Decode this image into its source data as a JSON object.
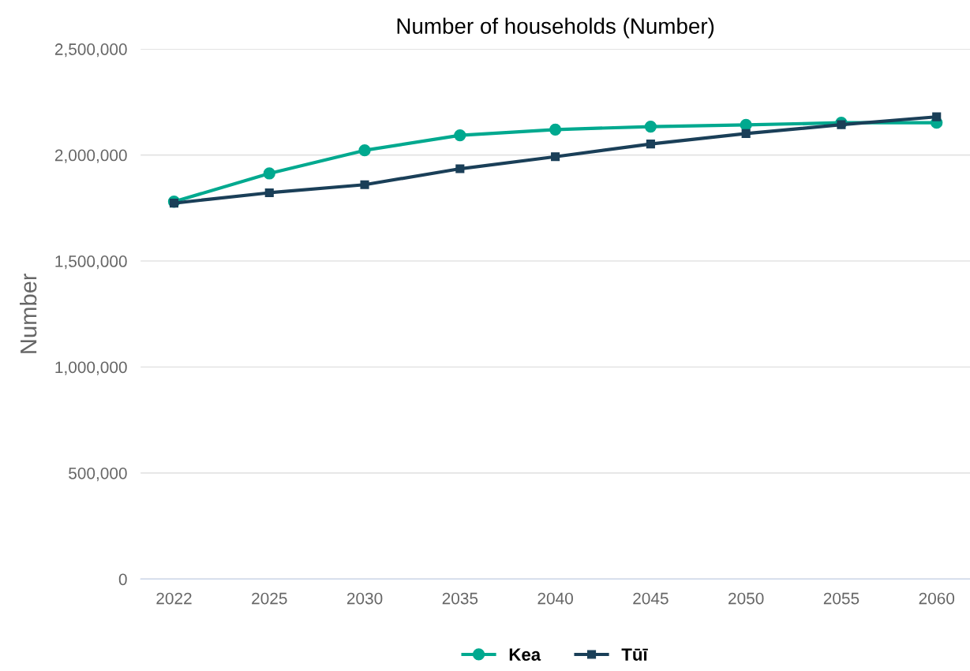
{
  "chart_data": {
    "type": "line",
    "title": "Number of households (Number)",
    "ylabel": "Number",
    "categories": [
      "2022",
      "2025",
      "2030",
      "2035",
      "2040",
      "2045",
      "2050",
      "2055",
      "2060"
    ],
    "series": [
      {
        "name": "Kea",
        "color": "#00a98f",
        "marker": "circle",
        "values": [
          1780000,
          1913000,
          2022000,
          2093000,
          2120000,
          2134000,
          2142000,
          2152000,
          2152000
        ]
      },
      {
        "name": "Tūī",
        "color": "#1a3f58",
        "marker": "square",
        "values": [
          1773000,
          1822000,
          1860000,
          1935000,
          1992000,
          2052000,
          2101000,
          2143000,
          2180000
        ]
      }
    ],
    "ylim": [
      0,
      2500000
    ],
    "yticks": [
      {
        "value": 0,
        "label": "0"
      },
      {
        "value": 500000,
        "label": "500,000"
      },
      {
        "value": 1000000,
        "label": "1,000,000"
      },
      {
        "value": 1500000,
        "label": "1,500,000"
      },
      {
        "value": 2000000,
        "label": "2,000,000"
      },
      {
        "value": 2500000,
        "label": "2,500,000"
      }
    ],
    "grid": "y",
    "legend": "bottom"
  }
}
